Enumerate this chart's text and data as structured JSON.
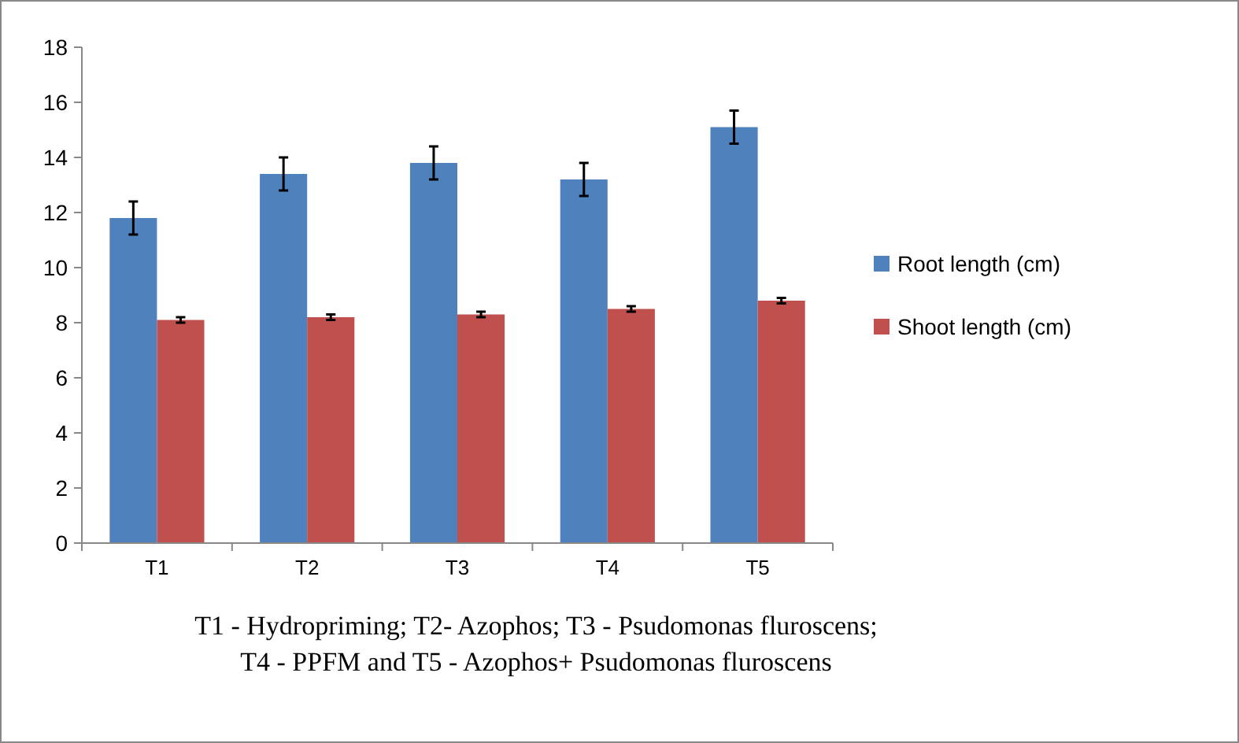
{
  "chart_data": {
    "type": "bar",
    "categories": [
      "T1",
      "T2",
      "T3",
      "T4",
      "T5"
    ],
    "series": [
      {
        "name": "Root length (cm)",
        "color": "#4f81bd",
        "values": [
          11.8,
          13.4,
          13.8,
          13.2,
          15.1
        ],
        "errors": [
          0.6,
          0.6,
          0.6,
          0.6,
          0.6
        ]
      },
      {
        "name": "Shoot length (cm)",
        "color": "#c0504d",
        "values": [
          8.1,
          8.2,
          8.3,
          8.5,
          8.8
        ],
        "errors": [
          0.1,
          0.1,
          0.1,
          0.1,
          0.1
        ]
      }
    ],
    "ylim": [
      0,
      18
    ],
    "yticks": [
      0,
      2,
      4,
      6,
      8,
      10,
      12,
      14,
      16,
      18
    ],
    "grid": false,
    "legend": "right",
    "annotations": [
      "T1 - Hydropriming; T2- Azophos; T3 - Psudomonas fluroscens;",
      "T4 - PPFM and T5 - Azophos+ Psudomonas fluroscens"
    ]
  }
}
